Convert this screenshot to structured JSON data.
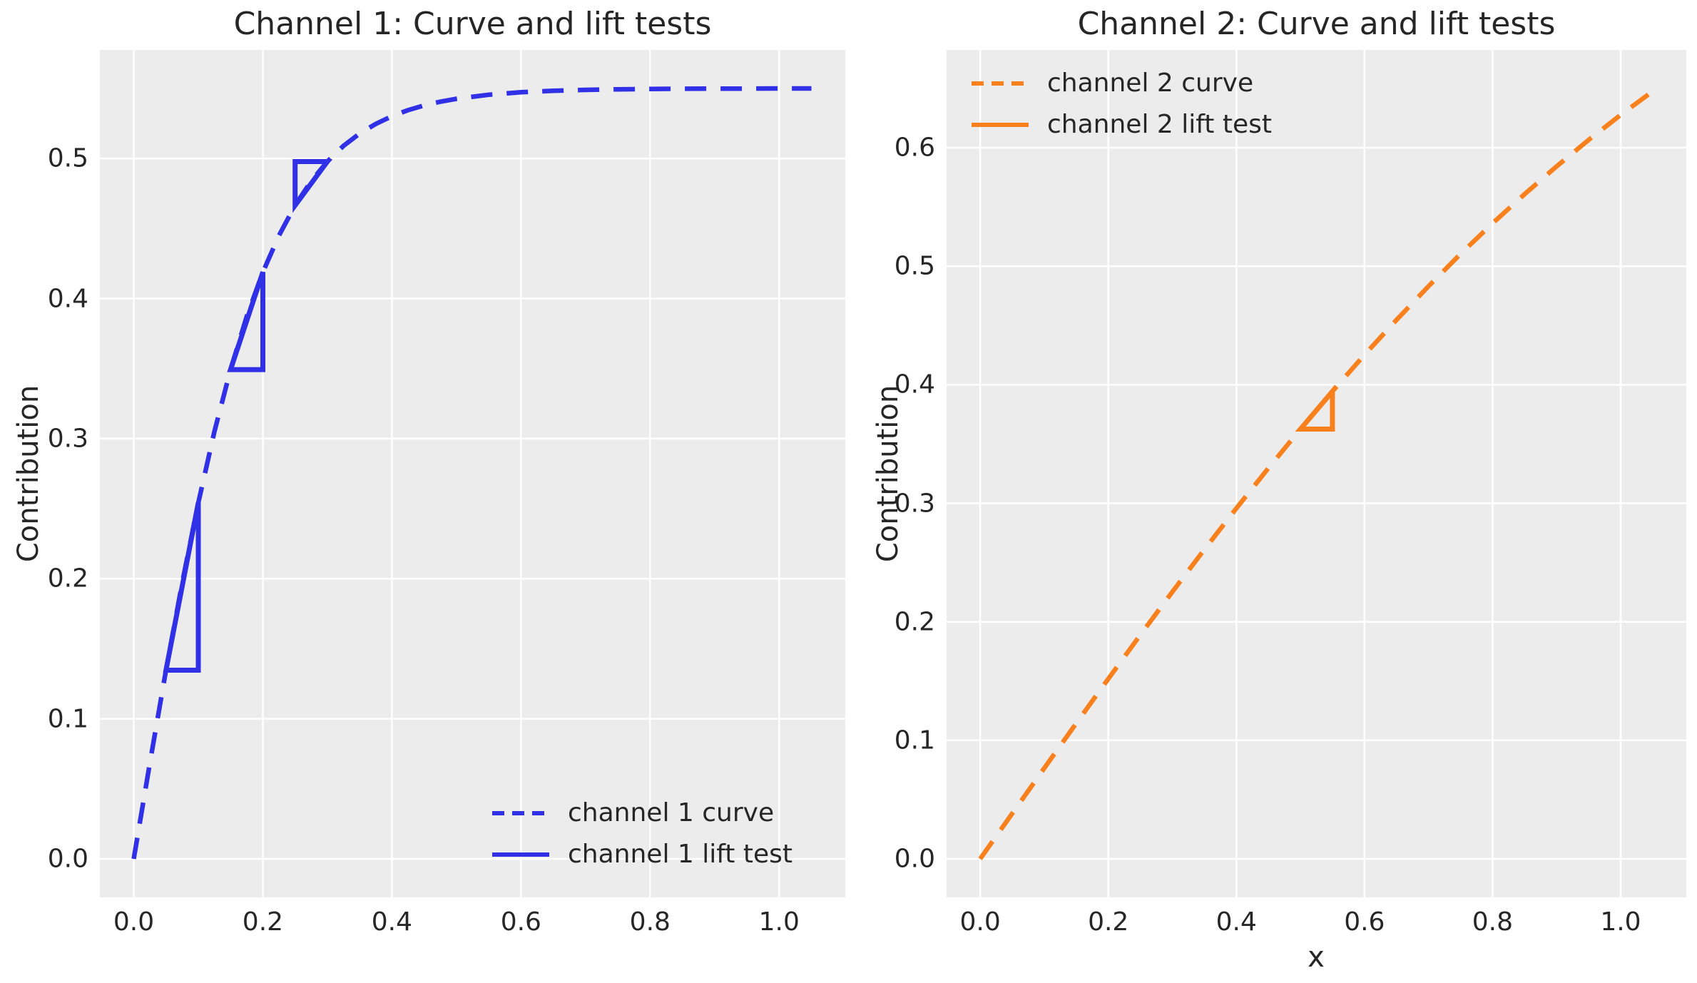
{
  "figure": {
    "background": "#ffffff",
    "axes_background": "#ececec",
    "grid_color": "#ffffff",
    "text_color": "#262626",
    "channel1_color": "#3030e6",
    "channel2_color": "#f8811e"
  },
  "chart_data": [
    {
      "type": "line",
      "title": "Channel 1: Curve and lift tests",
      "xlabel": "",
      "ylabel": "Contribution",
      "xlim": [
        -0.0525,
        1.1025
      ],
      "ylim": [
        -0.0275,
        0.5775
      ],
      "grid": true,
      "legend_position": "lower-right",
      "xtick_values": [
        0.0,
        0.2,
        0.4,
        0.6,
        0.8,
        1.0
      ],
      "xtick_labels": [
        "0.0",
        "0.2",
        "0.4",
        "0.6",
        "0.8",
        "1.0"
      ],
      "ytick_values": [
        0.0,
        0.1,
        0.2,
        0.3,
        0.4,
        0.5
      ],
      "ytick_labels": [
        "0.0",
        "0.1",
        "0.2",
        "0.3",
        "0.4",
        "0.5"
      ],
      "series": [
        {
          "name": "channel 1 curve",
          "style": "dashed",
          "color": "#3030e6",
          "x": [
            0,
            0.025,
            0.05,
            0.075,
            0.1,
            0.125,
            0.15,
            0.175,
            0.2,
            0.225,
            0.25,
            0.275,
            0.3,
            0.325,
            0.35,
            0.375,
            0.4,
            0.425,
            0.45,
            0.475,
            0.5,
            0.55,
            0.6,
            0.65,
            0.7,
            0.75,
            0.8,
            0.85,
            0.9,
            0.95,
            1.0,
            1.05
          ],
          "y": [
            0,
            0.0684,
            0.1347,
            0.1971,
            0.2542,
            0.3051,
            0.3493,
            0.3871,
            0.4189,
            0.445,
            0.4666,
            0.4839,
            0.4978,
            0.509,
            0.5178,
            0.5247,
            0.5302,
            0.5345,
            0.5379,
            0.5406,
            0.5426,
            0.5455,
            0.5473,
            0.5483,
            0.549,
            0.5494,
            0.5496,
            0.5498,
            0.5499,
            0.5499,
            0.55,
            0.55
          ]
        },
        {
          "name": "channel 1 lift test",
          "style": "solid",
          "color": "#3030e6",
          "lift_tests": [
            {
              "x0": 0.05,
              "y0": 0.1347,
              "x1": 0.1,
              "y1": 0.2542,
              "corner": "bottom-right"
            },
            {
              "x0": 0.15,
              "y0": 0.3493,
              "x1": 0.2,
              "y1": 0.4189,
              "corner": "bottom-right"
            },
            {
              "x0": 0.25,
              "y0": 0.4666,
              "x1": 0.3,
              "y1": 0.4978,
              "corner": "top-left"
            }
          ]
        }
      ]
    },
    {
      "type": "line",
      "title": "Channel 2: Curve and lift tests",
      "xlabel": "x",
      "ylabel": "Contribution",
      "xlim": [
        -0.0525,
        1.1025
      ],
      "ylim": [
        -0.0325,
        0.6825
      ],
      "grid": true,
      "legend_position": "upper-left",
      "xtick_values": [
        0.0,
        0.2,
        0.4,
        0.6,
        0.8,
        1.0
      ],
      "xtick_labels": [
        "0.0",
        "0.2",
        "0.4",
        "0.6",
        "0.8",
        "1.0"
      ],
      "ytick_values": [
        0.0,
        0.1,
        0.2,
        0.3,
        0.4,
        0.5,
        0.6
      ],
      "ytick_labels": [
        "0.0",
        "0.1",
        "0.2",
        "0.3",
        "0.4",
        "0.5",
        "0.6"
      ],
      "series": [
        {
          "name": "channel 2 curve",
          "style": "dashed",
          "color": "#f8811e",
          "x": [
            0,
            0.05,
            0.1,
            0.15,
            0.2,
            0.25,
            0.3,
            0.35,
            0.4,
            0.45,
            0.5,
            0.55,
            0.6,
            0.65,
            0.7,
            0.75,
            0.8,
            0.85,
            0.9,
            0.95,
            1.0,
            1.05
          ],
          "y": [
            0,
            0.0383,
            0.0765,
            0.1144,
            0.1519,
            0.1889,
            0.2253,
            0.261,
            0.2958,
            0.3297,
            0.3626,
            0.3944,
            0.4252,
            0.4547,
            0.4831,
            0.5104,
            0.5362,
            0.5608,
            0.5843,
            0.6066,
            0.6277,
            0.6476
          ]
        },
        {
          "name": "channel 2 lift test",
          "style": "solid",
          "color": "#f8811e",
          "lift_tests": [
            {
              "x0": 0.5,
              "y0": 0.3626,
              "x1": 0.55,
              "y1": 0.3944,
              "corner": "bottom-right"
            }
          ]
        }
      ]
    }
  ]
}
